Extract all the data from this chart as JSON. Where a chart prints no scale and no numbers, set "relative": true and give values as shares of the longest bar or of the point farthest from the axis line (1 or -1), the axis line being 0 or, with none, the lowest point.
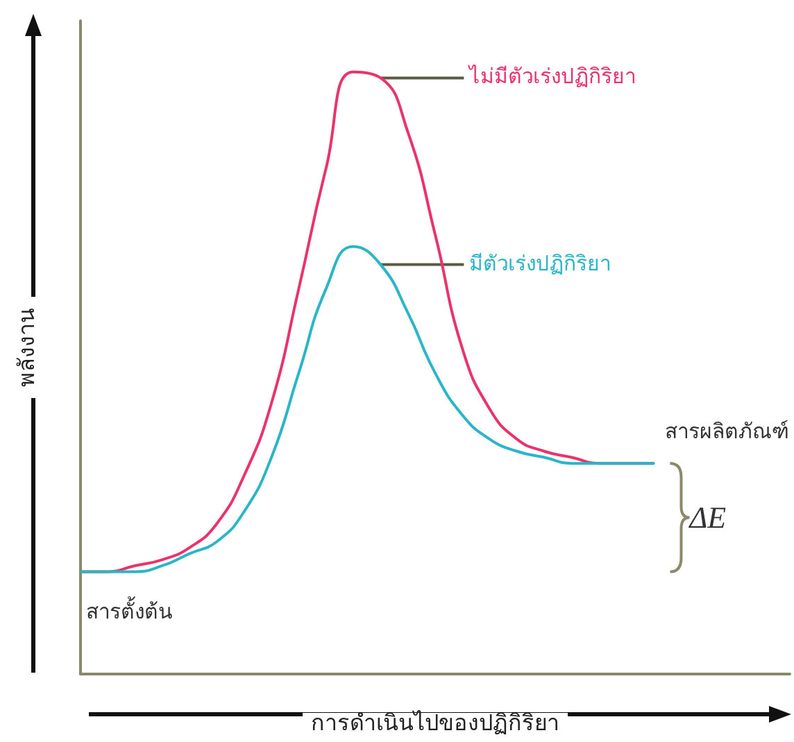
{
  "chart_data": {
    "type": "line",
    "relative": true,
    "xlabel": "การดำเนินไปของปฏิกิริยา",
    "ylabel": "พลังงาน",
    "categories": [
      null,
      null,
      null,
      null,
      null,
      null,
      null,
      null,
      null,
      null,
      null,
      null,
      null,
      null,
      null,
      null,
      null,
      null,
      null,
      null,
      null,
      null,
      null,
      null,
      null,
      null,
      null
    ],
    "series": [
      {
        "name": "ไม่มีตัวเร่งปฏิกิริยา",
        "color": "#e8336b",
        "values": [
          0.17,
          0.17,
          0.18,
          0.19,
          0.21,
          0.25,
          0.33,
          0.45,
          0.64,
          0.84,
          1.0,
          0.99,
          0.9,
          0.73,
          0.54,
          0.44,
          0.39,
          0.37,
          0.36,
          0.35,
          0.35,
          0.35,
          null,
          null,
          null,
          null,
          null
        ]
      },
      {
        "name": "มีตัวเร่งปฏิกิริยา",
        "color": "#2bb5c8",
        "values": [
          0.17,
          0.17,
          0.17,
          0.18,
          0.2,
          0.22,
          0.27,
          0.36,
          0.5,
          0.64,
          0.71,
          0.68,
          0.6,
          0.5,
          0.43,
          0.39,
          0.37,
          0.36,
          0.35,
          0.35,
          0.35,
          0.35,
          null,
          null,
          null,
          null,
          null
        ]
      }
    ],
    "annotations": [
      "สารตั้งต้น",
      "สารผลิตภัณฑ์",
      "ΔE"
    ],
    "legend": false,
    "grid": false,
    "marker": "none",
    "line_style": "solid"
  }
}
